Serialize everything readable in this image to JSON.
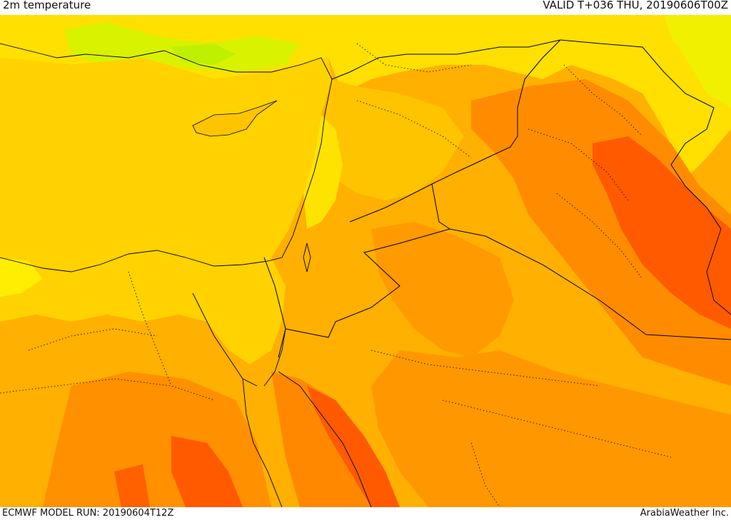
{
  "header": {
    "title": "2m temperature",
    "valid": "VALID T+036 THU, 20190606T00Z"
  },
  "footer": {
    "model_run": "ECMWF MODEL RUN: 20190604T12Z",
    "credit": "ArabiaWeather Inc."
  },
  "map": {
    "field": "2m temperature",
    "colors": {
      "sea": "#ffd400",
      "cool_green": "#c8f000",
      "cool_lime": "#e8f500",
      "yellow": "#ffe600",
      "gold": "#ffc800",
      "amber": "#ffad00",
      "orange": "#ff8c00",
      "deep_orange": "#ff5c00",
      "hot": "#ff3a00",
      "border": "#000000"
    }
  }
}
